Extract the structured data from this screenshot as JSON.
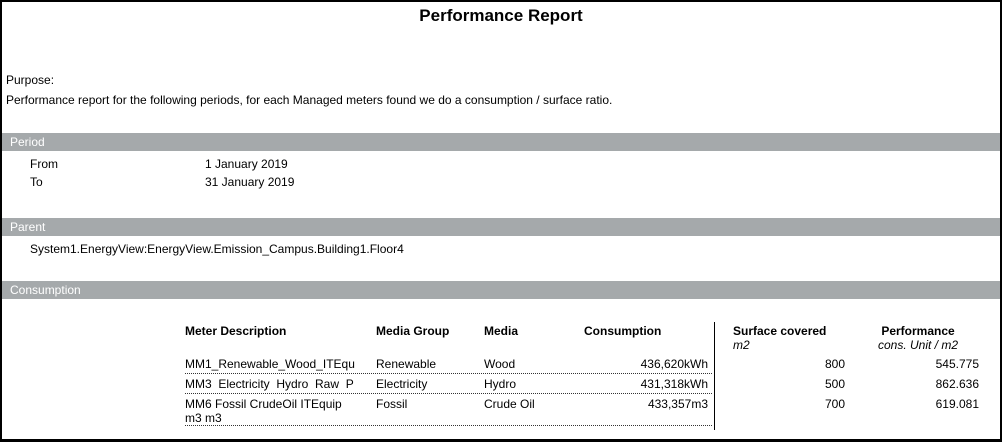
{
  "report": {
    "title": "Performance Report",
    "purpose_label": "Purpose:",
    "purpose_text": "Performance report for the following periods, for each Managed meters found we do a consumption / surface ratio."
  },
  "period": {
    "section_label": "Period",
    "from_label": "From",
    "from_value": "1 January 2019",
    "to_label": "To",
    "to_value": "31 January 2019"
  },
  "parent": {
    "section_label": "Parent",
    "value": "System1.EnergyView:EnergyView.Emission_Campus.Building1.Floor4"
  },
  "consumption": {
    "section_label": "Consumption",
    "headers": {
      "meter": "Meter Description",
      "media_group": "Media Group",
      "media": "Media",
      "consumption": "Consumption",
      "surface": "Surface covered",
      "surface_unit": "m2",
      "performance": "Performance",
      "performance_unit": "cons. Unit / m2"
    },
    "rows": [
      {
        "meter": "MM1_Renewable_Wood_ITEqu",
        "media_group": "Renewable",
        "media": "Wood",
        "consumption": "436,620kWh",
        "surface": "800",
        "performance": "545.775"
      },
      {
        "meter": "MM3  Electricity  Hydro  Raw  P",
        "media_group": "Electricity",
        "media": "Hydro",
        "consumption": "431,318kWh",
        "surface": "500",
        "performance": "862.636"
      },
      {
        "meter": "MM6 Fossil CrudeOil ITEquip\nm3 m3",
        "media_group": "Fossil",
        "media": "Crude Oil",
        "consumption": "433,357m3",
        "surface": "700",
        "performance": "619.081"
      }
    ]
  },
  "colors": {
    "section_band": "#a5a9ab",
    "band_text": "#ffffff"
  }
}
